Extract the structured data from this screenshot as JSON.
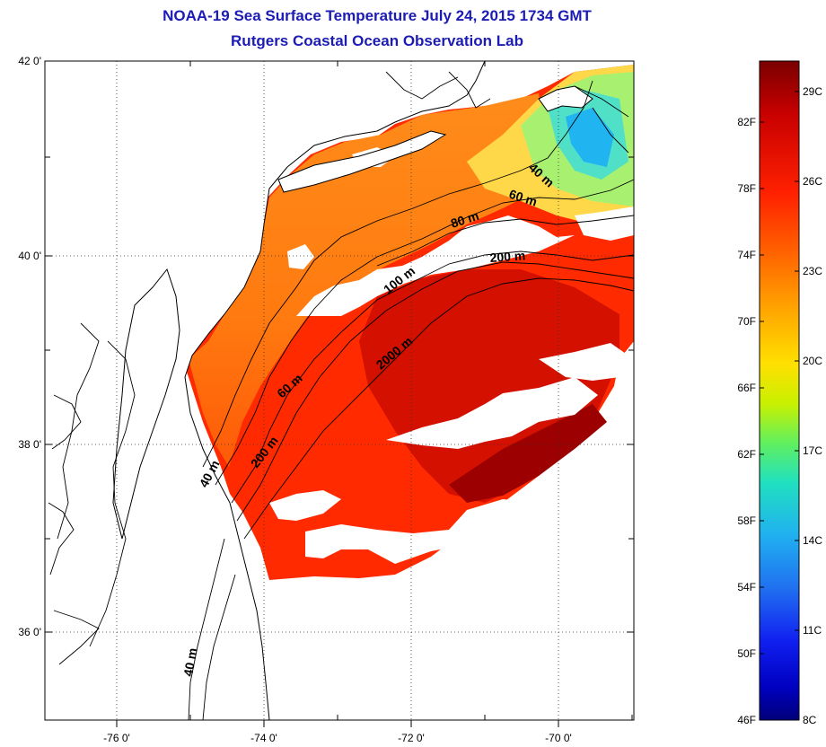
{
  "title": {
    "line1": "NOAA-19 Sea Surface Temperature July 24, 2015 1734 GMT",
    "line2": "Rutgers Coastal Ocean Observation Lab"
  },
  "map": {
    "lat_ticks": [
      "42 0'",
      "40 0'",
      "38 0'",
      "36 0'"
    ],
    "lon_ticks": [
      "-76 0'",
      "-74 0'",
      "-72 0'",
      "-70 0'"
    ],
    "grid": "dotted",
    "land_color": "#ffffff",
    "coast_color": "#000000"
  },
  "contour_labels": [
    "40 m",
    "60 m",
    "80 m",
    "100 m",
    "200 m",
    "2000 m",
    "60 m",
    "200 m",
    "40 m",
    "40 m"
  ],
  "colorbar": {
    "fahrenheit": [
      "82F",
      "78F",
      "74F",
      "70F",
      "66F",
      "62F",
      "58F",
      "54F",
      "50F",
      "46F"
    ],
    "celsius": [
      "29C",
      "26C",
      "23C",
      "20C",
      "17C",
      "14C",
      "11C",
      "8C"
    ],
    "colors": [
      "#7a0000",
      "#c80000",
      "#ff2000",
      "#ff6a00",
      "#ffa800",
      "#ffe000",
      "#c8f000",
      "#60f060",
      "#20e0c0",
      "#20b0f0",
      "#2070f0",
      "#1020f0",
      "#0000c0",
      "#00007a"
    ]
  }
}
